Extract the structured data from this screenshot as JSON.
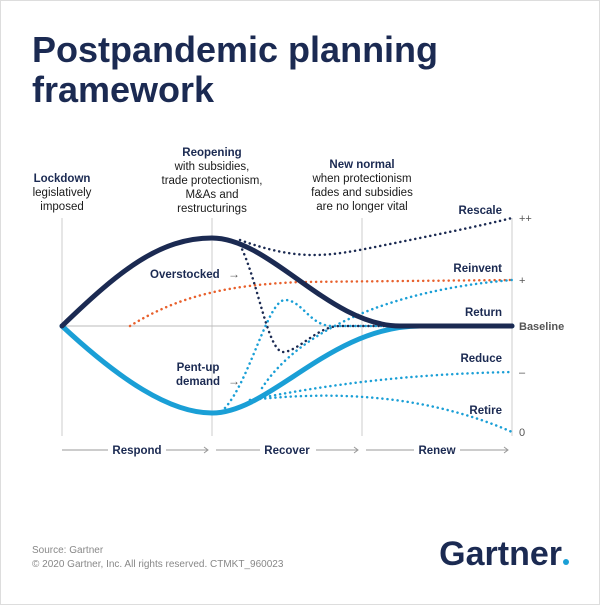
{
  "header": {
    "title": [
      "Postpandemic planning",
      "framework"
    ]
  },
  "phases": [
    {
      "heading": "Lockdown",
      "text": [
        "legislatively",
        "imposed"
      ]
    },
    {
      "heading": "Reopening",
      "text": [
        "with subsidies,",
        "trade protectionism,",
        "M&As and",
        "restructurings"
      ]
    },
    {
      "heading": "New normal",
      "text": [
        "when protectionism",
        "fades and subsidies",
        "are no longer vital"
      ]
    }
  ],
  "outcomes": [
    "Rescale",
    "Reinvent",
    "Return",
    "Reduce",
    "Retire"
  ],
  "levels": [
    "++",
    "+",
    "Baseline",
    "–",
    "0"
  ],
  "annotations": {
    "overstocked": "Overstocked",
    "pent_up": [
      "Pent-up",
      "demand"
    ]
  },
  "stages": [
    "Respond",
    "Recover",
    "Renew"
  ],
  "footer": {
    "source": "Source: Gartner",
    "copyright": "© 2020 Gartner, Inc. All rights reserved. CTMKT_960023",
    "logo": "Gartner"
  }
}
